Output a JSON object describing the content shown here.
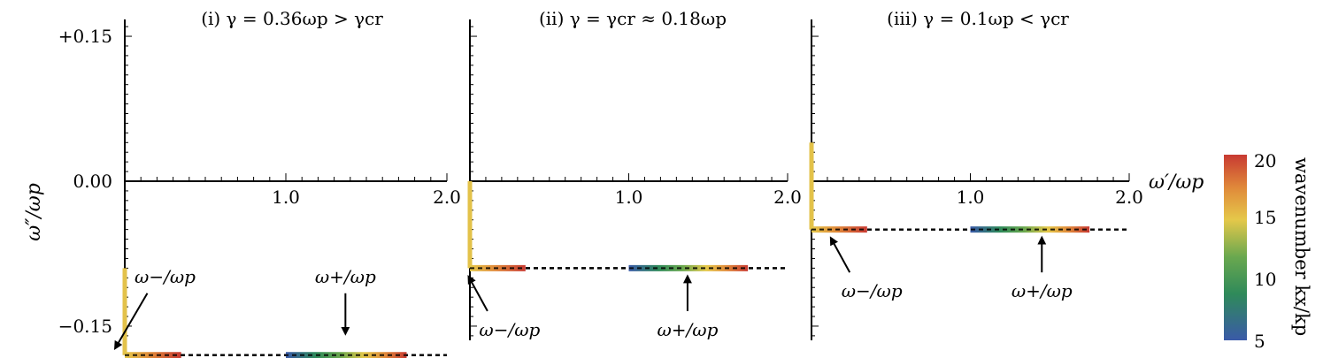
{
  "figure": {
    "ylabel": "ω″/ωp",
    "xlabel": "ω′/ωp",
    "colorbar": {
      "label": "wavenumber kx/kp",
      "ticks": [
        {
          "value": 20,
          "label": "20",
          "color": "#c0392b"
        },
        {
          "value": 15,
          "label": "15",
          "color": "#d4a62a"
        },
        {
          "value": 10,
          "label": "10",
          "color": "#3f8a3a"
        },
        {
          "value": 5,
          "label": "5",
          "color": "#3a5a9a"
        }
      ],
      "gradient": [
        "#3a5aa8",
        "#2f8a5a",
        "#6aa84f",
        "#e5c84a",
        "#e08a3a",
        "#c83a32"
      ]
    }
  },
  "chart_data": [
    {
      "type": "line",
      "title": "(i) γ = 0.36ωp > γcr",
      "xlim": [
        0,
        2.0
      ],
      "ylim": [
        -0.18,
        0.18
      ],
      "x_ticks": [
        "1.0",
        "2.0"
      ],
      "y_ticks": [
        "+0.15",
        "0.00",
        "−0.15"
      ],
      "y_tick_values": [
        0.15,
        0.0,
        -0.15
      ],
      "branches": {
        "vertical": {
          "x": 0,
          "y_range": [
            -0.09,
            -0.18
          ]
        },
        "omega_minus": {
          "x_range": [
            0.0,
            0.35
          ],
          "y": -0.18
        },
        "omega_plus": {
          "x_range": [
            1.0,
            1.75
          ],
          "y": -0.18
        }
      },
      "dashed_level": -0.18,
      "annotations": [
        {
          "text": "ω−/ωp",
          "x": 0.25,
          "y": -0.105
        },
        {
          "text": "ω+/ωp",
          "x": 1.37,
          "y": -0.105
        }
      ]
    },
    {
      "type": "line",
      "title": "(ii) γ = γcr ≈ 0.18ωp",
      "xlim": [
        0,
        2.0
      ],
      "ylim": [
        -0.18,
        0.18
      ],
      "x_ticks": [
        "1.0",
        "2.0"
      ],
      "branches": {
        "vertical": {
          "x": 0,
          "y_range": [
            0.0,
            -0.09
          ]
        },
        "omega_minus": {
          "x_range": [
            0.0,
            0.35
          ],
          "y": -0.09
        },
        "omega_plus": {
          "x_range": [
            1.0,
            1.75
          ],
          "y": -0.09
        }
      },
      "dashed_level": -0.09,
      "annotations": [
        {
          "text": "ω−/ωp",
          "x": 0.25,
          "y": -0.16
        },
        {
          "text": "ω+/ωp",
          "x": 1.37,
          "y": -0.16
        }
      ]
    },
    {
      "type": "line",
      "title": "(iii) γ = 0.1ωp < γcr",
      "xlim": [
        0,
        2.0
      ],
      "ylim": [
        -0.18,
        0.18
      ],
      "x_ticks": [
        "1.0",
        "2.0"
      ],
      "branches": {
        "vertical": {
          "x": 0,
          "y_range": [
            0.04,
            -0.05
          ]
        },
        "omega_minus": {
          "x_range": [
            0.0,
            0.35
          ],
          "y": -0.05
        },
        "omega_plus": {
          "x_range": [
            1.0,
            1.75
          ],
          "y": -0.05
        }
      },
      "dashed_level": -0.05,
      "annotations": [
        {
          "text": "ω−/ωp",
          "x": 0.38,
          "y": -0.12
        },
        {
          "text": "ω+/ωp",
          "x": 1.45,
          "y": -0.12
        }
      ]
    }
  ]
}
